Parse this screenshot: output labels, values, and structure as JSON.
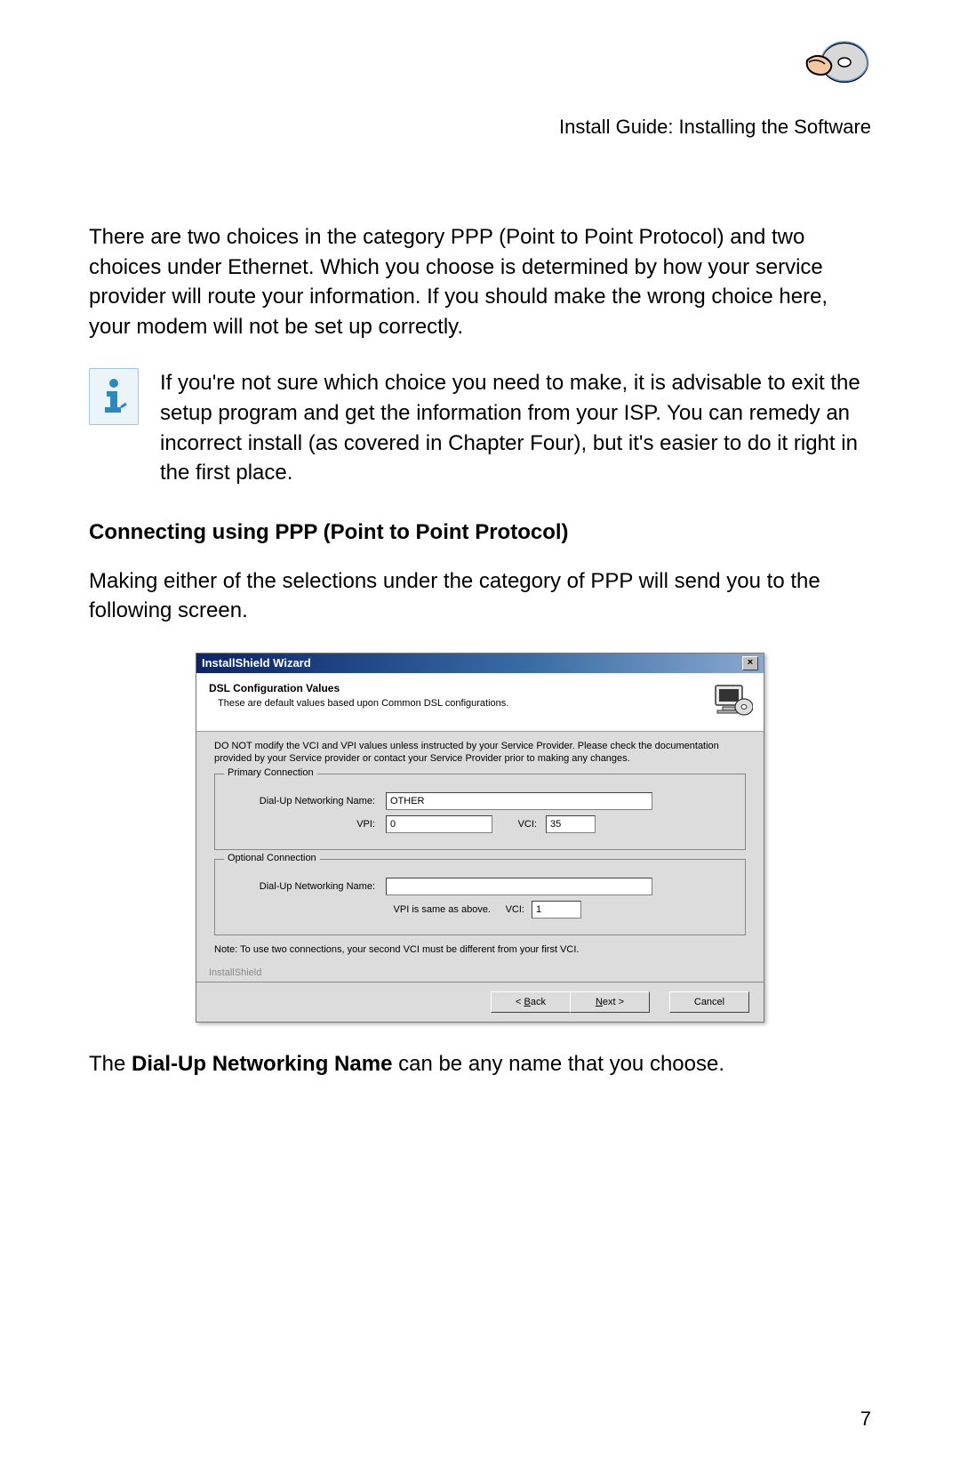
{
  "header": {
    "breadcrumb": "Install Guide: Installing the Software"
  },
  "paragraphs": {
    "intro": "There are two choices in the category PPP (Point to Point Protocol) and two choices under Ethernet.  Which you choose is determined by how your service provider will route your information. If you should make the wrong choice here, your modem will not be set up correctly.",
    "info": "If you're not sure which choice you need to make, it is advisable to exit the setup program and get the information from your ISP.  You can remedy an incorrect install (as covered in Chapter Four), but it's easier to do it right in the first place.",
    "ppp_heading": "Connecting using PPP (Point to Point Protocol)",
    "ppp_intro": "Making either of the selections under the category of PPP will send you to the following screen.",
    "after_dialog_pre": "The ",
    "after_dialog_bold": "Dial-Up Networking Name",
    "after_dialog_post": " can be any name that you choose."
  },
  "dialog": {
    "title": "InstallShield Wizard",
    "close_glyph": "×",
    "header_title": "DSL Configuration Values",
    "header_sub": "These are default values based upon Common DSL configurations.",
    "warning": "DO NOT modify the VCI and VPI values unless instructed by your Service Provider.  Please check the documentation provided by your Service provider or contact your Service Provider prior to making any changes.",
    "primary": {
      "group_title": "Primary Connection",
      "name_label": "Dial-Up Networking Name:",
      "name_value": "OTHER",
      "vpi_label": "VPI:",
      "vpi_value": "0",
      "vci_label": "VCI:",
      "vci_value": "35"
    },
    "optional": {
      "group_title": "Optional Connection",
      "name_label": "Dial-Up Networking Name:",
      "name_value": "",
      "vpi_same": "VPI is same as above.",
      "vci_label": "VCI:",
      "vci_value": "1"
    },
    "note": "Note: To use two connections, your second VCI must be different from your first VCI.",
    "brand": "InstallShield",
    "buttons": {
      "back": "< Back",
      "next": "Next >",
      "cancel": "Cancel"
    }
  },
  "page_number": "7",
  "icons": {
    "header_cd": "cd-hand-icon",
    "info": "info-icon",
    "dialog_pc": "computer-icon"
  },
  "colors": {
    "titlebar_start": "#0a246a",
    "titlebar_end": "#8aa8d0",
    "dialog_bg": "#dcdcdc",
    "info_bg": "#eaf4f9",
    "info_border": "#9fc6d9"
  }
}
